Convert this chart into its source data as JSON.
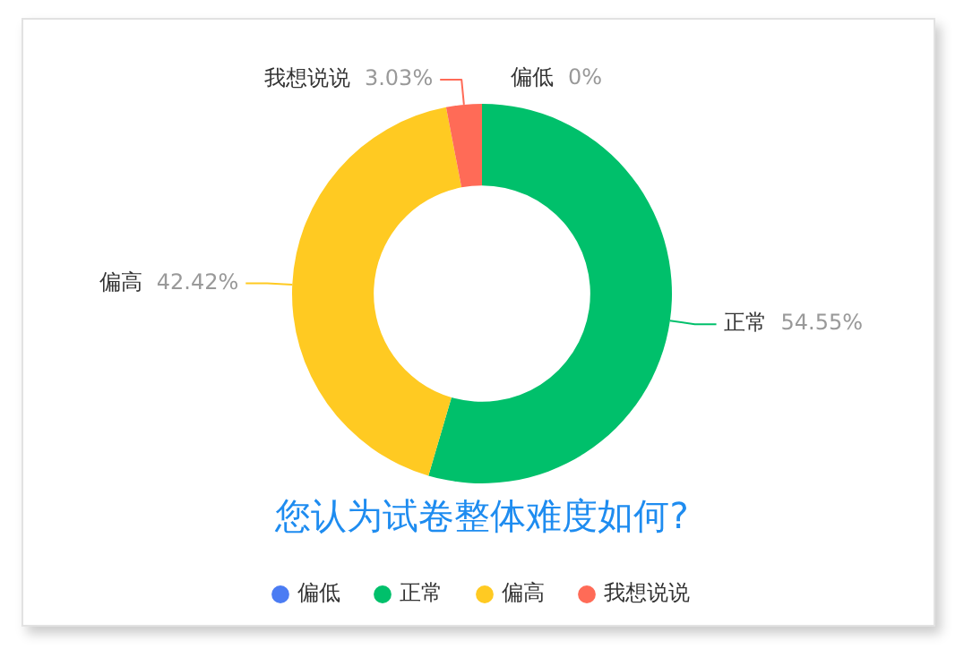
{
  "chart_data": {
    "type": "donut",
    "title": "您认为试卷整体难度如何?",
    "categories": [
      "偏低",
      "正常",
      "偏高",
      "我想说说"
    ],
    "values": [
      0,
      54.55,
      42.42,
      3.03
    ],
    "value_labels": [
      "0%",
      "54.55%",
      "42.42%",
      "3.03%"
    ],
    "colors": [
      "#4b7cf3",
      "#00c06b",
      "#ffca22",
      "#ff6b57"
    ],
    "legend": "bottom"
  }
}
